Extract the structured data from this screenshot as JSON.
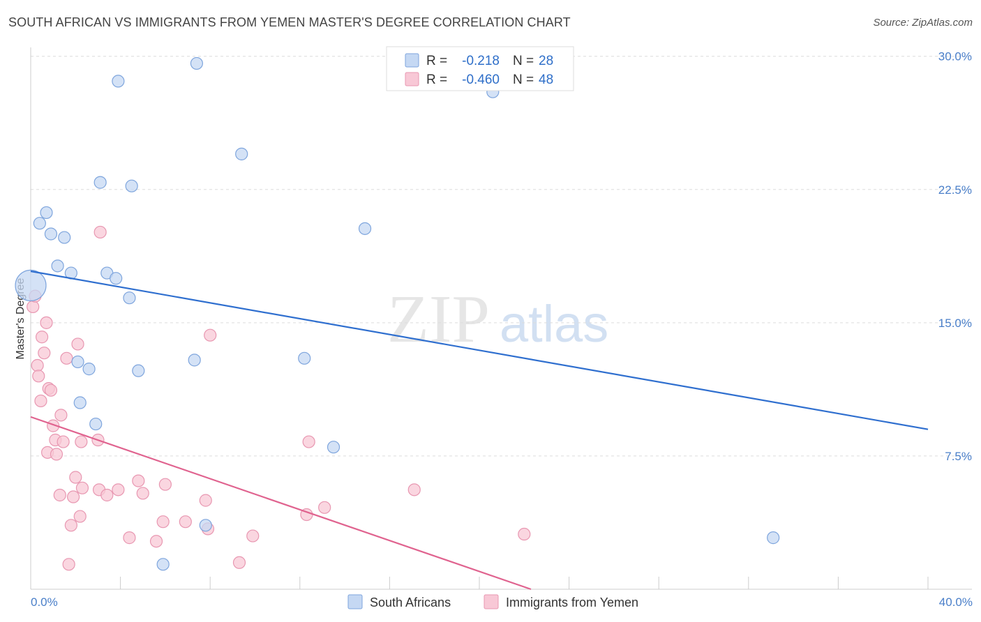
{
  "title": "SOUTH AFRICAN VS IMMIGRANTS FROM YEMEN MASTER'S DEGREE CORRELATION CHART",
  "source": "Source: ZipAtlas.com",
  "watermark": {
    "zip": "ZIP",
    "atlas": "atlas"
  },
  "legend_top": [
    {
      "r_label": "R =",
      "r_value": "-0.218",
      "n_label": "N =",
      "n_value": "28"
    },
    {
      "r_label": "R =",
      "r_value": "-0.460",
      "n_label": "N =",
      "n_value": "48"
    }
  ],
  "colors": {
    "blue_fill": "#c5d8f3",
    "blue_stroke": "#7ea5dd",
    "blue_line": "#2f6fcf",
    "pink_fill": "#f8c8d6",
    "pink_stroke": "#e897b1",
    "pink_line": "#e0638f",
    "grid": "#dcdcdc",
    "axis": "#cccccc"
  },
  "chart_data": {
    "type": "scatter",
    "title": "SOUTH AFRICAN VS IMMIGRANTS FROM YEMEN MASTER'S DEGREE CORRELATION CHART",
    "xlabel": "",
    "ylabel": "Master's Degree",
    "xlim": [
      0,
      40
    ],
    "ylim": [
      0,
      30.5
    ],
    "x_tick_labels": [
      "0.0%",
      "40.0%"
    ],
    "y_ticks": [
      7.5,
      15.0,
      22.5,
      30.0
    ],
    "y_tick_labels": [
      "7.5%",
      "15.0%",
      "22.5%",
      "30.0%"
    ],
    "legend": [
      "South Africans",
      "Immigrants from Yemen"
    ],
    "series": [
      {
        "name": "South Africans",
        "r": -0.218,
        "n": 28,
        "trend": {
          "x": [
            0,
            40
          ],
          "y": [
            17.9,
            9.0
          ]
        },
        "points": [
          {
            "x": 0.0,
            "y": 17.1,
            "big": true
          },
          {
            "x": 0.4,
            "y": 20.6
          },
          {
            "x": 0.7,
            "y": 21.2
          },
          {
            "x": 0.9,
            "y": 20.0
          },
          {
            "x": 1.2,
            "y": 18.2
          },
          {
            "x": 1.5,
            "y": 19.8
          },
          {
            "x": 1.8,
            "y": 17.8
          },
          {
            "x": 2.1,
            "y": 12.8
          },
          {
            "x": 2.2,
            "y": 10.5
          },
          {
            "x": 2.6,
            "y": 12.4
          },
          {
            "x": 2.9,
            "y": 9.3
          },
          {
            "x": 3.1,
            "y": 22.9
          },
          {
            "x": 3.4,
            "y": 17.8
          },
          {
            "x": 3.8,
            "y": 17.5
          },
          {
            "x": 3.9,
            "y": 28.6
          },
          {
            "x": 4.4,
            "y": 16.4
          },
          {
            "x": 4.5,
            "y": 22.7
          },
          {
            "x": 4.8,
            "y": 12.3
          },
          {
            "x": 5.9,
            "y": 1.4
          },
          {
            "x": 7.3,
            "y": 12.9
          },
          {
            "x": 7.4,
            "y": 29.6
          },
          {
            "x": 7.8,
            "y": 3.6
          },
          {
            "x": 9.4,
            "y": 24.5
          },
          {
            "x": 12.2,
            "y": 13.0
          },
          {
            "x": 13.5,
            "y": 8.0
          },
          {
            "x": 14.9,
            "y": 20.3
          },
          {
            "x": 20.6,
            "y": 28.0
          },
          {
            "x": 33.1,
            "y": 2.9
          }
        ]
      },
      {
        "name": "Immigrants from Yemen",
        "r": -0.46,
        "n": 48,
        "trend": {
          "x": [
            0,
            22.3
          ],
          "y": [
            9.7,
            0.0
          ]
        },
        "points": [
          {
            "x": 0.1,
            "y": 15.9
          },
          {
            "x": 0.2,
            "y": 16.5
          },
          {
            "x": 0.3,
            "y": 12.6
          },
          {
            "x": 0.35,
            "y": 12.0
          },
          {
            "x": 0.45,
            "y": 10.6
          },
          {
            "x": 0.5,
            "y": 14.2
          },
          {
            "x": 0.6,
            "y": 13.3
          },
          {
            "x": 0.7,
            "y": 15.0
          },
          {
            "x": 0.75,
            "y": 7.7
          },
          {
            "x": 0.8,
            "y": 11.3
          },
          {
            "x": 0.9,
            "y": 11.2
          },
          {
            "x": 1.0,
            "y": 9.2
          },
          {
            "x": 1.1,
            "y": 8.4
          },
          {
            "x": 1.15,
            "y": 7.6
          },
          {
            "x": 1.3,
            "y": 5.3
          },
          {
            "x": 1.35,
            "y": 9.8
          },
          {
            "x": 1.45,
            "y": 8.3
          },
          {
            "x": 1.6,
            "y": 13.0
          },
          {
            "x": 1.7,
            "y": 1.4
          },
          {
            "x": 1.8,
            "y": 3.6
          },
          {
            "x": 1.9,
            "y": 5.2
          },
          {
            "x": 2.0,
            "y": 6.3
          },
          {
            "x": 2.1,
            "y": 13.8
          },
          {
            "x": 2.2,
            "y": 4.1
          },
          {
            "x": 2.25,
            "y": 8.3
          },
          {
            "x": 2.3,
            "y": 5.7
          },
          {
            "x": 3.0,
            "y": 8.4
          },
          {
            "x": 3.05,
            "y": 5.6
          },
          {
            "x": 3.1,
            "y": 20.1
          },
          {
            "x": 3.4,
            "y": 5.3
          },
          {
            "x": 3.9,
            "y": 5.6
          },
          {
            "x": 4.4,
            "y": 2.9
          },
          {
            "x": 4.8,
            "y": 6.1
          },
          {
            "x": 5.0,
            "y": 5.4
          },
          {
            "x": 5.6,
            "y": 2.7
          },
          {
            "x": 5.9,
            "y": 3.8
          },
          {
            "x": 6.0,
            "y": 5.9
          },
          {
            "x": 6.9,
            "y": 3.8
          },
          {
            "x": 7.8,
            "y": 5.0
          },
          {
            "x": 7.9,
            "y": 3.4
          },
          {
            "x": 8.0,
            "y": 14.3
          },
          {
            "x": 9.3,
            "y": 1.5
          },
          {
            "x": 9.9,
            "y": 3.0
          },
          {
            "x": 12.3,
            "y": 4.2
          },
          {
            "x": 12.4,
            "y": 8.3
          },
          {
            "x": 13.1,
            "y": 4.6
          },
          {
            "x": 17.1,
            "y": 5.6
          },
          {
            "x": 22.0,
            "y": 3.1
          }
        ]
      }
    ]
  }
}
